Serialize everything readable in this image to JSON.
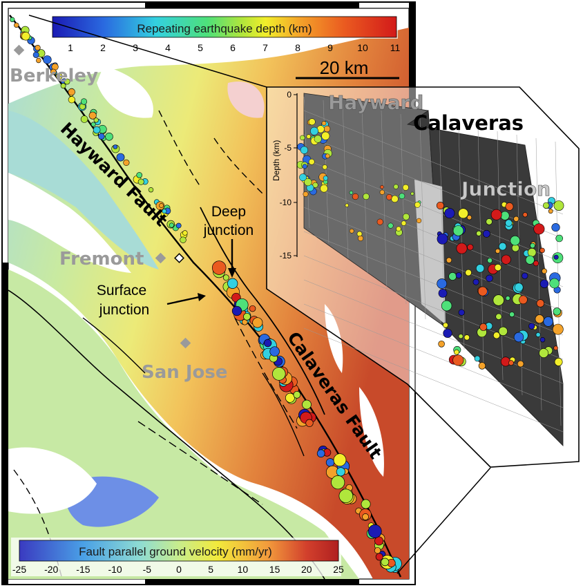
{
  "colorbar_depth": {
    "title": "Repeating earthquake depth (km)",
    "ticks": [
      "1",
      "2",
      "3",
      "4",
      "5",
      "6",
      "7",
      "8",
      "9",
      "10",
      "11"
    ]
  },
  "colorbar_velocity": {
    "title": "Fault parallel ground velocity (mm/yr)",
    "ticks": [
      "-25",
      "-20",
      "-15",
      "-10",
      "-5",
      "0",
      "5",
      "10",
      "15",
      "20",
      "25"
    ]
  },
  "scale_bar": {
    "label": "20 km"
  },
  "cities": {
    "berkeley": "Berkeley",
    "fremont": "Fremont",
    "san_jose": "San Jose"
  },
  "faults": {
    "hayward": "Hayward Fault",
    "calaveras": "Calaveras Fault"
  },
  "annotations": {
    "deep_line1": "Deep",
    "deep_line2": "junction",
    "surface_line1": "Surface",
    "surface_line2": "junction"
  },
  "inset": {
    "hayward": "Hayward",
    "calaveras": "Calaveras",
    "junction": "Junction",
    "ylabel": "Depth (km)",
    "yticks": [
      "0",
      "-5",
      "-10",
      "-15"
    ]
  },
  "colors": {
    "depth_ramp": [
      "#1b1bb4",
      "#2a6ae0",
      "#33d0e0",
      "#4ee07a",
      "#b0e63c",
      "#f2ee2a",
      "#f4a22a",
      "#ea5a20",
      "#d21a1a"
    ],
    "velocity_ramp": [
      "#3a3ac0",
      "#4aa0e6",
      "#8fdcd2",
      "#c8ec8c",
      "#f2ea3c",
      "#f29a3c",
      "#d2402c",
      "#b02020"
    ]
  }
}
